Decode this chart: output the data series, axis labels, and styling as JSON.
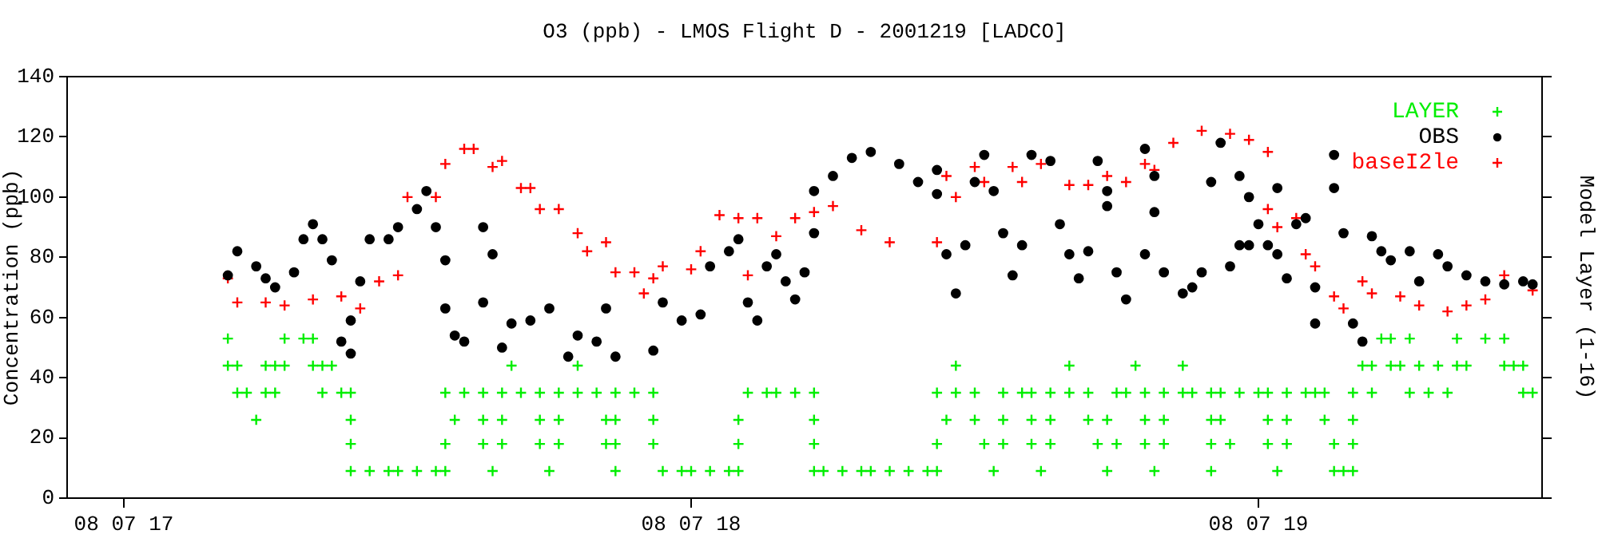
{
  "chart_data": {
    "type": "scatter",
    "title": "O3 (ppb) - LMOS Flight D - 2001219 [LADCO]",
    "ylabel": "Concentration (ppb)",
    "y2label": "Model Layer (1-16)",
    "xlim": [
      "2001-08-07T16:54",
      "2001-08-07T19:30"
    ],
    "xticks": [
      {
        "value": "2001-08-07T17:00",
        "label": "08 07 17"
      },
      {
        "value": "2001-08-07T18:00",
        "label": "08 07 18"
      },
      {
        "value": "2001-08-07T19:00",
        "label": "08 07 19"
      }
    ],
    "ylim": [
      0,
      140
    ],
    "yticks": [
      0,
      20,
      40,
      60,
      80,
      100,
      120,
      140
    ],
    "grid": false,
    "legend": "top right",
    "series": [
      {
        "name": "LAYER",
        "color": "#00ee00",
        "marker": "cross",
        "x": [
          "2001-08-07T17:11",
          "2001-08-07T17:17",
          "2001-08-07T17:19",
          "2001-08-07T17:20",
          "2001-08-07T19:13",
          "2001-08-07T19:14",
          "2001-08-07T19:16",
          "2001-08-07T19:21",
          "2001-08-07T19:24",
          "2001-08-07T19:26",
          "2001-08-07T17:11",
          "2001-08-07T17:12",
          "2001-08-07T17:15",
          "2001-08-07T17:16",
          "2001-08-07T17:17",
          "2001-08-07T17:20",
          "2001-08-07T17:21",
          "2001-08-07T17:22",
          "2001-08-07T17:41",
          "2001-08-07T17:48",
          "2001-08-07T18:28",
          "2001-08-07T18:40",
          "2001-08-07T18:47",
          "2001-08-07T18:52",
          "2001-08-07T19:11",
          "2001-08-07T19:12",
          "2001-08-07T19:14",
          "2001-08-07T19:15",
          "2001-08-07T19:17",
          "2001-08-07T19:19",
          "2001-08-07T19:21",
          "2001-08-07T19:22",
          "2001-08-07T19:26",
          "2001-08-07T19:27",
          "2001-08-07T19:28",
          "2001-08-07T17:12",
          "2001-08-07T17:13",
          "2001-08-07T17:15",
          "2001-08-07T17:16",
          "2001-08-07T17:21",
          "2001-08-07T17:23",
          "2001-08-07T17:24",
          "2001-08-07T17:34",
          "2001-08-07T17:36",
          "2001-08-07T17:38",
          "2001-08-07T17:40",
          "2001-08-07T17:42",
          "2001-08-07T17:44",
          "2001-08-07T17:46",
          "2001-08-07T17:48",
          "2001-08-07T17:50",
          "2001-08-07T17:52",
          "2001-08-07T17:54",
          "2001-08-07T17:56",
          "2001-08-07T18:06",
          "2001-08-07T18:08",
          "2001-08-07T18:09",
          "2001-08-07T18:11",
          "2001-08-07T18:13",
          "2001-08-07T18:26",
          "2001-08-07T18:28",
          "2001-08-07T18:30",
          "2001-08-07T18:33",
          "2001-08-07T18:35",
          "2001-08-07T18:36",
          "2001-08-07T18:38",
          "2001-08-07T18:40",
          "2001-08-07T18:42",
          "2001-08-07T18:45",
          "2001-08-07T18:46",
          "2001-08-07T18:48",
          "2001-08-07T18:50",
          "2001-08-07T18:52",
          "2001-08-07T18:53",
          "2001-08-07T18:55",
          "2001-08-07T18:56",
          "2001-08-07T18:58",
          "2001-08-07T19:00",
          "2001-08-07T19:01",
          "2001-08-07T19:03",
          "2001-08-07T19:05",
          "2001-08-07T19:06",
          "2001-08-07T19:07",
          "2001-08-07T19:10",
          "2001-08-07T19:12",
          "2001-08-07T19:16",
          "2001-08-07T19:18",
          "2001-08-07T19:20",
          "2001-08-07T19:28",
          "2001-08-07T19:29",
          "2001-08-07T17:14",
          "2001-08-07T17:24",
          "2001-08-07T17:35",
          "2001-08-07T17:38",
          "2001-08-07T17:40",
          "2001-08-07T17:44",
          "2001-08-07T17:46",
          "2001-08-07T17:51",
          "2001-08-07T17:52",
          "2001-08-07T17:56",
          "2001-08-07T18:05",
          "2001-08-07T18:13",
          "2001-08-07T18:27",
          "2001-08-07T18:30",
          "2001-08-07T18:33",
          "2001-08-07T18:36",
          "2001-08-07T18:38",
          "2001-08-07T18:42",
          "2001-08-07T18:44",
          "2001-08-07T18:48",
          "2001-08-07T18:50",
          "2001-08-07T18:55",
          "2001-08-07T18:56",
          "2001-08-07T19:01",
          "2001-08-07T19:03",
          "2001-08-07T19:07",
          "2001-08-07T19:10",
          "2001-08-07T17:24",
          "2001-08-07T17:34",
          "2001-08-07T17:38",
          "2001-08-07T17:40",
          "2001-08-07T17:44",
          "2001-08-07T17:46",
          "2001-08-07T17:51",
          "2001-08-07T17:52",
          "2001-08-07T17:56",
          "2001-08-07T18:05",
          "2001-08-07T18:13",
          "2001-08-07T18:26",
          "2001-08-07T18:31",
          "2001-08-07T18:33",
          "2001-08-07T18:36",
          "2001-08-07T18:38",
          "2001-08-07T18:43",
          "2001-08-07T18:45",
          "2001-08-07T18:48",
          "2001-08-07T18:50",
          "2001-08-07T18:55",
          "2001-08-07T18:57",
          "2001-08-07T19:01",
          "2001-08-07T19:03",
          "2001-08-07T19:08",
          "2001-08-07T19:10",
          "2001-08-07T17:24",
          "2001-08-07T17:26",
          "2001-08-07T17:28",
          "2001-08-07T17:29",
          "2001-08-07T17:31",
          "2001-08-07T17:33",
          "2001-08-07T17:34",
          "2001-08-07T17:39",
          "2001-08-07T17:45",
          "2001-08-07T17:52",
          "2001-08-07T17:57",
          "2001-08-07T17:59",
          "2001-08-07T18:00",
          "2001-08-07T18:02",
          "2001-08-07T18:04",
          "2001-08-07T18:05",
          "2001-08-07T18:13",
          "2001-08-07T18:14",
          "2001-08-07T18:16",
          "2001-08-07T18:18",
          "2001-08-07T18:19",
          "2001-08-07T18:21",
          "2001-08-07T18:23",
          "2001-08-07T18:25",
          "2001-08-07T18:26",
          "2001-08-07T18:32",
          "2001-08-07T18:37",
          "2001-08-07T18:44",
          "2001-08-07T18:49",
          "2001-08-07T18:55",
          "2001-08-07T19:02",
          "2001-08-07T19:08",
          "2001-08-07T19:09",
          "2001-08-07T19:10"
        ],
        "values": [
          53,
          53,
          53,
          53,
          53,
          53,
          53,
          53,
          53,
          53,
          44,
          44,
          44,
          44,
          44,
          44,
          44,
          44,
          44,
          44,
          44,
          44,
          44,
          44,
          44,
          44,
          44,
          44,
          44,
          44,
          44,
          44,
          44,
          44,
          44,
          35,
          35,
          35,
          35,
          35,
          35,
          35,
          35,
          35,
          35,
          35,
          35,
          35,
          35,
          35,
          35,
          35,
          35,
          35,
          35,
          35,
          35,
          35,
          35,
          35,
          35,
          35,
          35,
          35,
          35,
          35,
          35,
          35,
          35,
          35,
          35,
          35,
          35,
          35,
          35,
          35,
          35,
          35,
          35,
          35,
          35,
          35,
          35,
          35,
          35,
          35,
          35,
          35,
          35,
          35,
          26,
          26,
          26,
          26,
          26,
          26,
          26,
          26,
          26,
          26,
          26,
          26,
          26,
          26,
          26,
          26,
          26,
          26,
          26,
          26,
          26,
          26,
          26,
          26,
          26,
          26,
          26,
          18,
          18,
          18,
          18,
          18,
          18,
          18,
          18,
          18,
          18,
          18,
          18,
          18,
          18,
          18,
          18,
          18,
          18,
          18,
          18,
          18,
          18,
          18,
          18,
          18,
          18,
          9,
          9,
          9,
          9,
          9,
          9,
          9,
          9,
          9,
          9,
          9,
          9,
          9,
          9,
          9,
          9,
          9,
          9,
          9,
          9,
          9,
          9,
          9,
          9,
          9,
          9,
          9,
          9,
          9,
          9,
          9,
          9,
          9,
          9
        ]
      },
      {
        "name": "OBS",
        "color": "#000000",
        "marker": "circle",
        "x": [
          "2001-08-07T17:11",
          "2001-08-07T17:12",
          "2001-08-07T17:14",
          "2001-08-07T17:15",
          "2001-08-07T17:16",
          "2001-08-07T17:18",
          "2001-08-07T17:19",
          "2001-08-07T17:20",
          "2001-08-07T17:21",
          "2001-08-07T17:22",
          "2001-08-07T17:23",
          "2001-08-07T17:24",
          "2001-08-07T17:24",
          "2001-08-07T17:25",
          "2001-08-07T17:26",
          "2001-08-07T17:28",
          "2001-08-07T17:29",
          "2001-08-07T17:31",
          "2001-08-07T17:32",
          "2001-08-07T17:33",
          "2001-08-07T17:34",
          "2001-08-07T17:34",
          "2001-08-07T17:35",
          "2001-08-07T17:36",
          "2001-08-07T17:38",
          "2001-08-07T17:38",
          "2001-08-07T17:39",
          "2001-08-07T17:40",
          "2001-08-07T17:41",
          "2001-08-07T17:43",
          "2001-08-07T17:45",
          "2001-08-07T17:47",
          "2001-08-07T17:48",
          "2001-08-07T17:50",
          "2001-08-07T17:51",
          "2001-08-07T17:52",
          "2001-08-07T17:56",
          "2001-08-07T17:57",
          "2001-08-07T17:59",
          "2001-08-07T18:01",
          "2001-08-07T18:02",
          "2001-08-07T18:04",
          "2001-08-07T18:05",
          "2001-08-07T18:06",
          "2001-08-07T18:07",
          "2001-08-07T18:08",
          "2001-08-07T18:09",
          "2001-08-07T18:10",
          "2001-08-07T18:11",
          "2001-08-07T18:12",
          "2001-08-07T18:13",
          "2001-08-07T18:13",
          "2001-08-07T18:15",
          "2001-08-07T18:17",
          "2001-08-07T18:19",
          "2001-08-07T18:22",
          "2001-08-07T18:24",
          "2001-08-07T18:26",
          "2001-08-07T18:26",
          "2001-08-07T18:27",
          "2001-08-07T18:28",
          "2001-08-07T18:29",
          "2001-08-07T18:30",
          "2001-08-07T18:31",
          "2001-08-07T18:32",
          "2001-08-07T18:33",
          "2001-08-07T18:34",
          "2001-08-07T18:35",
          "2001-08-07T18:36",
          "2001-08-07T18:38",
          "2001-08-07T18:39",
          "2001-08-07T18:40",
          "2001-08-07T18:41",
          "2001-08-07T18:42",
          "2001-08-07T18:43",
          "2001-08-07T18:44",
          "2001-08-07T18:44",
          "2001-08-07T18:45",
          "2001-08-07T18:46",
          "2001-08-07T18:48",
          "2001-08-07T18:48",
          "2001-08-07T18:49",
          "2001-08-07T18:49",
          "2001-08-07T18:50",
          "2001-08-07T18:52",
          "2001-08-07T18:53",
          "2001-08-07T18:54",
          "2001-08-07T18:55",
          "2001-08-07T18:56",
          "2001-08-07T18:57",
          "2001-08-07T18:58",
          "2001-08-07T18:58",
          "2001-08-07T18:59",
          "2001-08-07T18:59",
          "2001-08-07T19:00",
          "2001-08-07T19:01",
          "2001-08-07T19:02",
          "2001-08-07T19:02",
          "2001-08-07T19:03",
          "2001-08-07T19:04",
          "2001-08-07T19:05",
          "2001-08-07T19:06",
          "2001-08-07T19:06",
          "2001-08-07T19:08",
          "2001-08-07T19:08",
          "2001-08-07T19:09",
          "2001-08-07T19:10",
          "2001-08-07T19:11",
          "2001-08-07T19:12",
          "2001-08-07T19:13",
          "2001-08-07T19:14",
          "2001-08-07T19:16",
          "2001-08-07T19:17",
          "2001-08-07T19:19",
          "2001-08-07T19:20",
          "2001-08-07T19:22",
          "2001-08-07T19:24",
          "2001-08-07T19:26",
          "2001-08-07T19:28",
          "2001-08-07T19:29"
        ],
        "values": [
          74,
          82,
          77,
          73,
          70,
          75,
          86,
          91,
          86,
          79,
          52,
          48,
          59,
          72,
          86,
          86,
          90,
          96,
          102,
          90,
          79,
          63,
          54,
          52,
          65,
          90,
          81,
          50,
          58,
          59,
          63,
          47,
          54,
          52,
          63,
          47,
          49,
          65,
          59,
          61,
          77,
          82,
          86,
          65,
          59,
          77,
          81,
          72,
          66,
          75,
          88,
          102,
          107,
          113,
          115,
          111,
          105,
          101,
          109,
          81,
          68,
          84,
          105,
          114,
          102,
          88,
          74,
          84,
          114,
          112,
          91,
          81,
          73,
          82,
          112,
          97,
          102,
          75,
          66,
          81,
          116,
          107,
          95,
          75,
          68,
          70,
          75,
          105,
          118,
          77,
          84,
          107,
          100,
          84,
          91,
          84,
          103,
          81,
          73,
          91,
          93,
          70,
          58,
          114,
          103,
          88,
          58,
          52,
          87,
          82,
          79,
          82,
          72,
          81,
          77,
          74,
          72,
          71,
          72,
          71
        ]
      },
      {
        "name": "baseI2le",
        "color": "#ff0000",
        "marker": "cross",
        "x": [
          "2001-08-07T17:11",
          "2001-08-07T17:12",
          "2001-08-07T17:15",
          "2001-08-07T17:17",
          "2001-08-07T17:20",
          "2001-08-07T17:23",
          "2001-08-07T17:25",
          "2001-08-07T17:27",
          "2001-08-07T17:29",
          "2001-08-07T17:30",
          "2001-08-07T17:33",
          "2001-08-07T17:34",
          "2001-08-07T17:36",
          "2001-08-07T17:37",
          "2001-08-07T17:39",
          "2001-08-07T17:40",
          "2001-08-07T17:42",
          "2001-08-07T17:43",
          "2001-08-07T17:44",
          "2001-08-07T17:46",
          "2001-08-07T17:48",
          "2001-08-07T17:49",
          "2001-08-07T17:51",
          "2001-08-07T17:52",
          "2001-08-07T17:54",
          "2001-08-07T17:55",
          "2001-08-07T17:56",
          "2001-08-07T17:57",
          "2001-08-07T18:00",
          "2001-08-07T18:01",
          "2001-08-07T18:03",
          "2001-08-07T18:05",
          "2001-08-07T18:06",
          "2001-08-07T18:07",
          "2001-08-07T18:09",
          "2001-08-07T18:11",
          "2001-08-07T18:13",
          "2001-08-07T18:15",
          "2001-08-07T18:18",
          "2001-08-07T18:21",
          "2001-08-07T18:26",
          "2001-08-07T18:27",
          "2001-08-07T18:28",
          "2001-08-07T18:30",
          "2001-08-07T18:31",
          "2001-08-07T18:34",
          "2001-08-07T18:35",
          "2001-08-07T18:37",
          "2001-08-07T18:40",
          "2001-08-07T18:42",
          "2001-08-07T18:44",
          "2001-08-07T18:46",
          "2001-08-07T18:48",
          "2001-08-07T18:49",
          "2001-08-07T18:51",
          "2001-08-07T18:54",
          "2001-08-07T18:57",
          "2001-08-07T18:59",
          "2001-08-07T19:01",
          "2001-08-07T19:01",
          "2001-08-07T19:02",
          "2001-08-07T19:04",
          "2001-08-07T19:05",
          "2001-08-07T19:06",
          "2001-08-07T19:08",
          "2001-08-07T19:09",
          "2001-08-07T19:11",
          "2001-08-07T19:12",
          "2001-08-07T19:15",
          "2001-08-07T19:17",
          "2001-08-07T19:20",
          "2001-08-07T19:22",
          "2001-08-07T19:24",
          "2001-08-07T19:26",
          "2001-08-07T19:29"
        ],
        "values": [
          73,
          65,
          65,
          64,
          66,
          67,
          63,
          72,
          74,
          100,
          100,
          111,
          116,
          116,
          110,
          112,
          103,
          103,
          96,
          96,
          88,
          82,
          85,
          75,
          75,
          68,
          73,
          77,
          76,
          82,
          94,
          93,
          74,
          93,
          87,
          93,
          95,
          97,
          89,
          85,
          85,
          107,
          100,
          110,
          105,
          110,
          105,
          111,
          104,
          104,
          107,
          105,
          111,
          109,
          118,
          122,
          121,
          119,
          115,
          96,
          90,
          93,
          81,
          77,
          67,
          63,
          72,
          68,
          67,
          64,
          62,
          64,
          66,
          74,
          69
        ]
      }
    ]
  }
}
